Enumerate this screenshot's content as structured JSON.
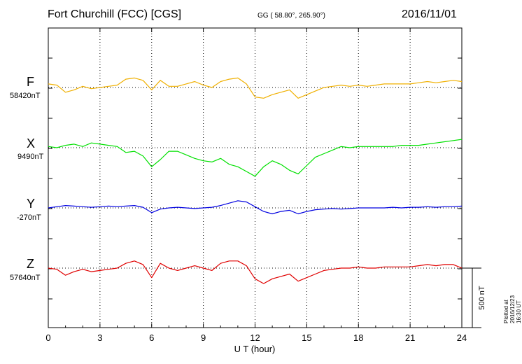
{
  "header": {
    "title": "Fort Churchill (FCC)  [CGS]",
    "coords": "GG ( 58.80°, 265.90°)",
    "date": "2016/11/01"
  },
  "footer": {
    "plotted": "Plotted at 2016/12/23 16:30 UT"
  },
  "chart_data": {
    "type": "line",
    "xlabel": "U T (hour)",
    "xlim": [
      0,
      24
    ],
    "xticks": [
      0,
      3,
      6,
      9,
      12,
      15,
      18,
      21,
      24
    ],
    "xtick_labels": [
      "0",
      "3",
      "6",
      "9",
      "12",
      "15",
      "18",
      "21",
      "24"
    ],
    "grid": true,
    "scale_bar": {
      "label": "500 nT",
      "value": 500
    },
    "series": [
      {
        "name": "F",
        "baseline_label": "58420nT",
        "baseline": 58420,
        "color": "#f0b000",
        "x": [
          0,
          0.5,
          1,
          1.5,
          2,
          2.5,
          3,
          3.5,
          4,
          4.5,
          5,
          5.5,
          6,
          6.5,
          7,
          7.5,
          8,
          8.5,
          9,
          9.5,
          10,
          10.5,
          11,
          11.5,
          12,
          12.5,
          13,
          13.5,
          14,
          14.5,
          15,
          15.5,
          16,
          16.5,
          17,
          17.5,
          18,
          18.5,
          19,
          19.5,
          20,
          20.5,
          21,
          21.5,
          22,
          22.5,
          23,
          23.5,
          24
        ],
        "y": [
          58450,
          58440,
          58380,
          58400,
          58430,
          58410,
          58420,
          58430,
          58440,
          58490,
          58500,
          58480,
          58400,
          58480,
          58430,
          58430,
          58450,
          58470,
          58440,
          58420,
          58470,
          58490,
          58500,
          58450,
          58340,
          58330,
          58360,
          58380,
          58400,
          58330,
          58360,
          58390,
          58420,
          58430,
          58440,
          58430,
          58440,
          58430,
          58440,
          58450,
          58450,
          58450,
          58450,
          58460,
          58470,
          58460,
          58470,
          58480,
          58470
        ]
      },
      {
        "name": "X",
        "baseline_label": "9490nT",
        "baseline": 9490,
        "color": "#00e000",
        "x": [
          0,
          0.5,
          1,
          1.5,
          2,
          2.5,
          3,
          3.5,
          4,
          4.5,
          5,
          5.5,
          6,
          6.5,
          7,
          7.5,
          8,
          8.5,
          9,
          9.5,
          10,
          10.5,
          11,
          11.5,
          12,
          12.5,
          13,
          13.5,
          14,
          14.5,
          15,
          15.5,
          16,
          16.5,
          17,
          17.5,
          18,
          18.5,
          19,
          19.5,
          20,
          20.5,
          21,
          21.5,
          22,
          22.5,
          23,
          23.5,
          24
        ],
        "y": [
          9500,
          9490,
          9510,
          9520,
          9500,
          9530,
          9520,
          9510,
          9500,
          9450,
          9460,
          9420,
          9330,
          9390,
          9460,
          9460,
          9430,
          9400,
          9380,
          9370,
          9400,
          9350,
          9330,
          9290,
          9250,
          9330,
          9380,
          9350,
          9300,
          9270,
          9340,
          9410,
          9440,
          9470,
          9500,
          9490,
          9500,
          9500,
          9500,
          9500,
          9500,
          9510,
          9510,
          9510,
          9520,
          9530,
          9540,
          9550,
          9560
        ]
      },
      {
        "name": "Y",
        "baseline_label": "-270nT",
        "baseline": -270,
        "color": "#0000e0",
        "x": [
          0,
          0.5,
          1,
          1.5,
          2,
          2.5,
          3,
          3.5,
          4,
          4.5,
          5,
          5.5,
          6,
          6.5,
          7,
          7.5,
          8,
          8.5,
          9,
          9.5,
          10,
          10.5,
          11,
          11.5,
          12,
          12.5,
          13,
          13.5,
          14,
          14.5,
          15,
          15.5,
          16,
          16.5,
          17,
          17.5,
          18,
          18.5,
          19,
          19.5,
          20,
          20.5,
          21,
          21.5,
          22,
          22.5,
          23,
          23.5,
          24
        ],
        "y": [
          -270,
          -260,
          -250,
          -255,
          -260,
          -265,
          -260,
          -255,
          -260,
          -255,
          -250,
          -265,
          -310,
          -280,
          -270,
          -265,
          -270,
          -275,
          -270,
          -265,
          -250,
          -230,
          -210,
          -220,
          -260,
          -300,
          -320,
          -300,
          -290,
          -320,
          -300,
          -285,
          -280,
          -275,
          -280,
          -275,
          -270,
          -270,
          -270,
          -270,
          -265,
          -270,
          -265,
          -265,
          -260,
          -265,
          -260,
          -260,
          -255
        ]
      },
      {
        "name": "Z",
        "baseline_label": "57640nT",
        "baseline": 57640,
        "color": "#e00000",
        "x": [
          0,
          0.5,
          1,
          1.5,
          2,
          2.5,
          3,
          3.5,
          4,
          4.5,
          5,
          5.5,
          6,
          6.5,
          7,
          7.5,
          8,
          8.5,
          9,
          9.5,
          10,
          10.5,
          11,
          11.5,
          12,
          12.5,
          13,
          13.5,
          14,
          14.5,
          15,
          15.5,
          16,
          16.5,
          17,
          17.5,
          18,
          18.5,
          19,
          19.5,
          20,
          20.5,
          21,
          21.5,
          22,
          22.5,
          23,
          23.5,
          24
        ],
        "y": [
          57640,
          57630,
          57580,
          57610,
          57630,
          57610,
          57620,
          57630,
          57640,
          57680,
          57700,
          57670,
          57560,
          57680,
          57640,
          57620,
          57640,
          57660,
          57640,
          57620,
          57680,
          57700,
          57700,
          57660,
          57550,
          57510,
          57550,
          57570,
          57590,
          57530,
          57560,
          57590,
          57620,
          57630,
          57640,
          57640,
          57650,
          57640,
          57640,
          57650,
          57650,
          57650,
          57650,
          57660,
          57670,
          57660,
          57670,
          57670,
          57640
        ]
      }
    ]
  }
}
